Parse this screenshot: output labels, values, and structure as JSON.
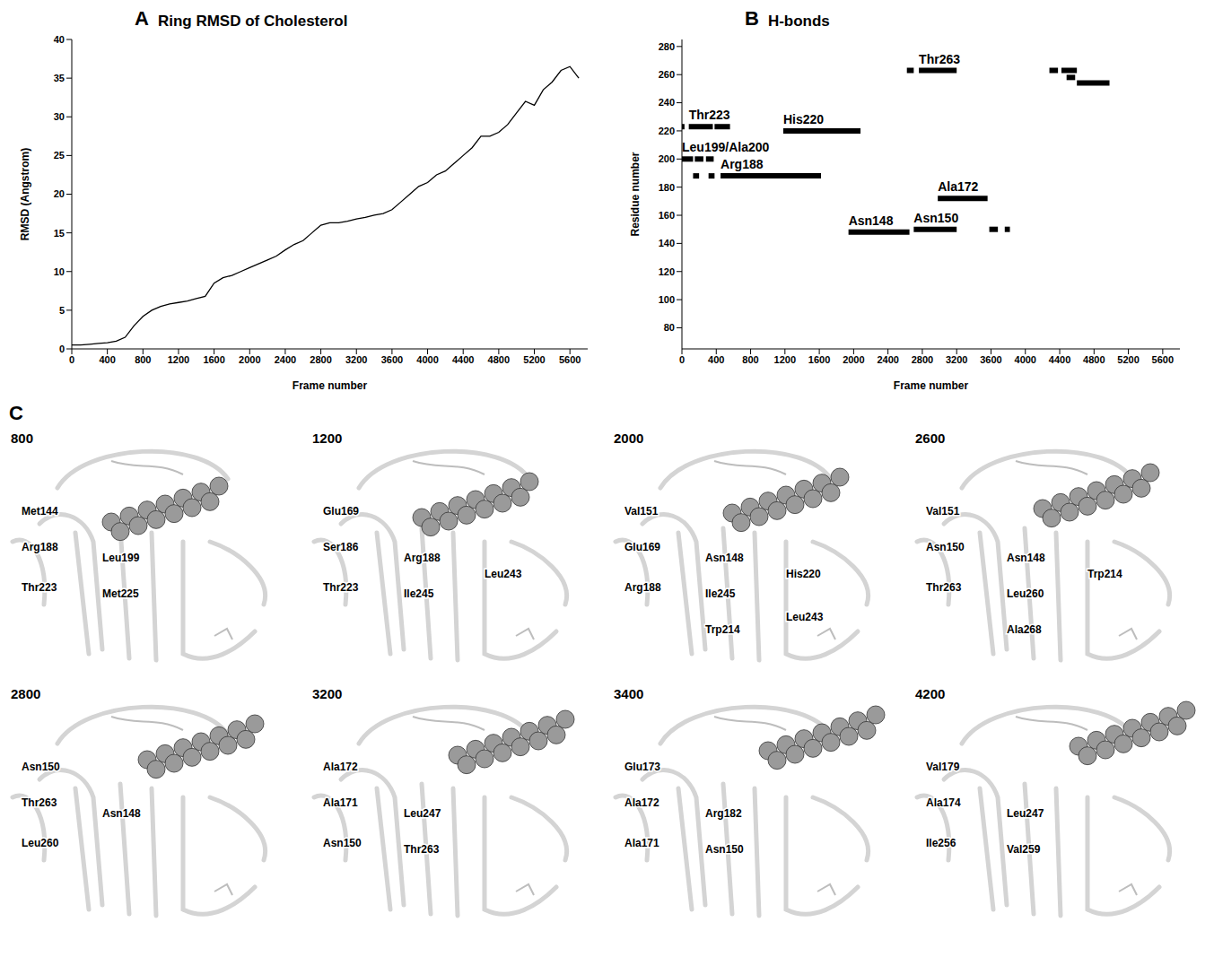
{
  "chart_data": [
    {
      "panel": "A",
      "type": "line",
      "title": "Ring RMSD of Cholesterol",
      "x_label": "Frame number",
      "y_label": "RMSD (Angstrom)",
      "color": "#000000",
      "x": [
        0,
        100,
        200,
        300,
        400,
        500,
        600,
        700,
        800,
        900,
        1000,
        1100,
        1200,
        1300,
        1400,
        1500,
        1600,
        1700,
        1800,
        1900,
        2000,
        2100,
        2200,
        2300,
        2400,
        2500,
        2600,
        2700,
        2800,
        2900,
        3000,
        3100,
        3200,
        3300,
        3400,
        3500,
        3600,
        3700,
        3800,
        3900,
        4000,
        4100,
        4200,
        4300,
        4400,
        4500,
        4600,
        4700,
        4800,
        4900,
        5000,
        5100,
        5200,
        5300,
        5400,
        5500,
        5600,
        5700
      ],
      "values": [
        0.5,
        0.5,
        0.6,
        0.7,
        0.8,
        1.0,
        1.5,
        3.0,
        4.2,
        5.0,
        5.5,
        5.8,
        6.0,
        6.2,
        6.5,
        6.8,
        8.5,
        9.2,
        9.5,
        10.0,
        10.5,
        11.0,
        11.5,
        12.0,
        12.8,
        13.5,
        14.0,
        15.0,
        16.0,
        16.3,
        16.3,
        16.5,
        16.8,
        17.0,
        17.3,
        17.5,
        18.0,
        19.0,
        20.0,
        21.0,
        21.5,
        22.5,
        23.0,
        24.0,
        25.0,
        26.0,
        27.5,
        27.5,
        28.0,
        29.0,
        30.5,
        32.0,
        31.5,
        33.5,
        34.5,
        36.0,
        36.5,
        35.0
      ],
      "xlim": [
        0,
        5800
      ],
      "xticks": [
        0,
        400,
        800,
        1200,
        1600,
        2000,
        2400,
        2800,
        3200,
        3600,
        4000,
        4400,
        4800,
        5200,
        5600
      ],
      "ylim": [
        0,
        40
      ],
      "yticks": [
        0,
        5,
        10,
        15,
        20,
        25,
        30,
        35,
        40
      ]
    },
    {
      "panel": "B",
      "type": "segment",
      "title": "H-bonds",
      "x_label": "Frame number",
      "y_label": "Residue number",
      "color": "#000000",
      "series": [
        {
          "name": "Thr223",
          "residue": 223,
          "segments": [
            [
              0,
              30
            ],
            [
              80,
              360
            ],
            [
              380,
              560
            ]
          ]
        },
        {
          "name": "Leu199/Ala200",
          "residue": 200,
          "segments": [
            [
              0,
              130
            ],
            [
              150,
              250
            ],
            [
              280,
              370
            ]
          ]
        },
        {
          "name": "Arg188",
          "residue": 188,
          "segments": [
            [
              130,
              200
            ],
            [
              310,
              380
            ],
            [
              450,
              1620
            ]
          ]
        },
        {
          "name": "His220",
          "residue": 220,
          "segments": [
            [
              1180,
              2080
            ]
          ]
        },
        {
          "name": "Asn148",
          "residue": 148,
          "segments": [
            [
              1940,
              2650
            ]
          ]
        },
        {
          "name": "Asn150",
          "residue": 150,
          "segments": [
            [
              2700,
              3200
            ],
            [
              3580,
              3680
            ],
            [
              3760,
              3820
            ]
          ]
        },
        {
          "name": "Ala172",
          "residue": 172,
          "segments": [
            [
              2980,
              3560
            ]
          ]
        },
        {
          "name": "Thr263",
          "residue": 263,
          "segments": [
            [
              2620,
              2700
            ],
            [
              2760,
              3200
            ],
            [
              4280,
              4380
            ],
            [
              4420,
              4600
            ]
          ]
        },
        {
          "residue": 258,
          "segments": [
            [
              4480,
              4580
            ]
          ]
        },
        {
          "residue": 254,
          "segments": [
            [
              4600,
              4980
            ]
          ]
        }
      ],
      "xlim": [
        0,
        5800
      ],
      "xticks": [
        0,
        400,
        800,
        1200,
        1600,
        2000,
        2400,
        2800,
        3200,
        3600,
        4000,
        4400,
        4800,
        5200,
        5600
      ],
      "ylim": [
        65,
        285
      ],
      "yticks": [
        80,
        100,
        120,
        140,
        160,
        180,
        200,
        220,
        240,
        260,
        280
      ]
    }
  ],
  "snapshots": {
    "panel": "C",
    "items": [
      {
        "frame": 800,
        "labels": [
          "Met144",
          "Arg188",
          "Leu199",
          "Thr223",
          "Met225"
        ]
      },
      {
        "frame": 1200,
        "labels": [
          "Glu169",
          "Ser186",
          "Arg188",
          "Thr223",
          "Ile245",
          "Leu243"
        ]
      },
      {
        "frame": 2000,
        "labels": [
          "Val151",
          "Glu169",
          "Asn148",
          "Arg188",
          "Ile245",
          "His220",
          "Trp214",
          "Leu243"
        ]
      },
      {
        "frame": 2600,
        "labels": [
          "Val151",
          "Asn150",
          "Asn148",
          "Thr263",
          "Leu260",
          "Trp214",
          "Ala268"
        ]
      },
      {
        "frame": 2800,
        "labels": [
          "Asn150",
          "Thr263",
          "Asn148",
          "Leu260"
        ]
      },
      {
        "frame": 3200,
        "labels": [
          "Ala172",
          "Ala171",
          "Leu247",
          "Asn150",
          "Thr263"
        ]
      },
      {
        "frame": 3400,
        "labels": [
          "Glu173",
          "Ala172",
          "Arg182",
          "Ala171",
          "Asn150"
        ]
      },
      {
        "frame": 4200,
        "labels": [
          "Val179",
          "Ala174",
          "Leu247",
          "Ile256",
          "Val259"
        ]
      }
    ]
  }
}
